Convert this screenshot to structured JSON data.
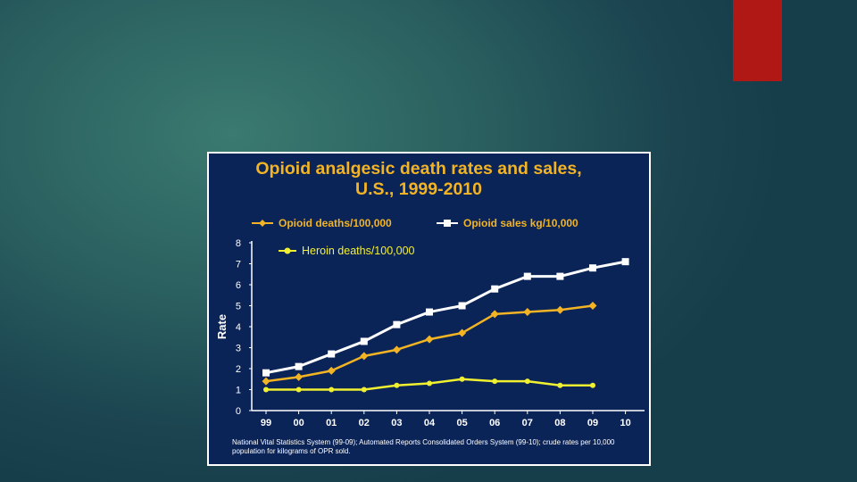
{
  "colors": {
    "opioid_deaths": "#f2b424",
    "opioid_sales": "#ffffff",
    "heroin_deaths": "#f0f030",
    "panel_bg": "#0b2458",
    "accent_tab": "#b01815"
  },
  "chart_data": {
    "type": "line",
    "title_line1": "Opioid analgesic death rates and sales,",
    "title_line2": "U.S., 1999-2010",
    "xlabel": "",
    "ylabel": "Rate",
    "ylim": [
      0,
      8
    ],
    "yticks": [
      "0",
      "1",
      "2",
      "3",
      "4",
      "5",
      "6",
      "7",
      "8"
    ],
    "categories": [
      "99",
      "00",
      "01",
      "02",
      "03",
      "04",
      "05",
      "06",
      "07",
      "08",
      "09",
      "10"
    ],
    "series": [
      {
        "name": "Opioid deaths/100,000",
        "marker": "diamond",
        "values": [
          1.4,
          1.6,
          1.9,
          2.6,
          2.9,
          3.4,
          3.7,
          4.6,
          4.7,
          4.8,
          5.0,
          null
        ]
      },
      {
        "name": "Opioid sales kg/10,000",
        "marker": "square",
        "values": [
          1.8,
          2.1,
          2.7,
          3.3,
          4.1,
          4.7,
          5.0,
          5.8,
          6.4,
          6.4,
          6.8,
          7.1
        ]
      },
      {
        "name": "Heroin deaths/100,000",
        "marker": "circle",
        "values": [
          1.0,
          1.0,
          1.0,
          1.0,
          1.2,
          1.3,
          1.5,
          1.4,
          1.4,
          1.2,
          1.2,
          null
        ]
      }
    ],
    "footnote": "National Vital Statistics System (99-09); Automated Reports Consolidated Orders System (99-10); crude rates per 10,000 population for  kilograms of OPR sold."
  }
}
